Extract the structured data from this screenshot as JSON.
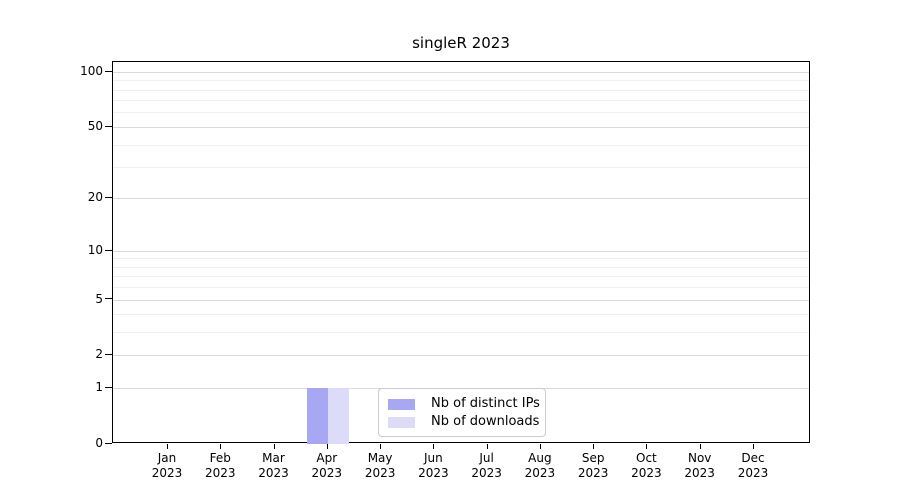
{
  "title": "singleR 2023",
  "chart_data": {
    "type": "bar",
    "title": "singleR 2023",
    "categories": [
      "Jan",
      "Feb",
      "Mar",
      "Apr",
      "May",
      "Jun",
      "Jul",
      "Aug",
      "Sep",
      "Oct",
      "Nov",
      "Dec"
    ],
    "category_year": "2023",
    "series": [
      {
        "name": "Nb of distinct IPs",
        "color": "#a7a7f3",
        "values": [
          0,
          0,
          0,
          1,
          0,
          0,
          0,
          0,
          0,
          0,
          0,
          0
        ]
      },
      {
        "name": "Nb of downloads",
        "color": "#dcdcf8",
        "values": [
          0,
          0,
          0,
          1,
          0,
          0,
          0,
          0,
          0,
          0,
          0,
          0
        ]
      }
    ],
    "xlabel": "",
    "ylabel": "",
    "yscale": "log1p",
    "ylim": [
      0,
      113
    ],
    "y_major_ticks": [
      0,
      1,
      2,
      5,
      10,
      20,
      50,
      100
    ],
    "y_minor_gridlines": [
      3,
      4,
      6,
      7,
      8,
      9,
      30,
      40,
      60,
      70,
      80,
      90
    ],
    "grid": true,
    "legend_position": "lower center"
  },
  "colors": {
    "axis": "#000000",
    "grid_major": "#d9d9d9",
    "grid_minor": "#efefef",
    "legend_border": "#cccccc",
    "background": "#ffffff"
  }
}
